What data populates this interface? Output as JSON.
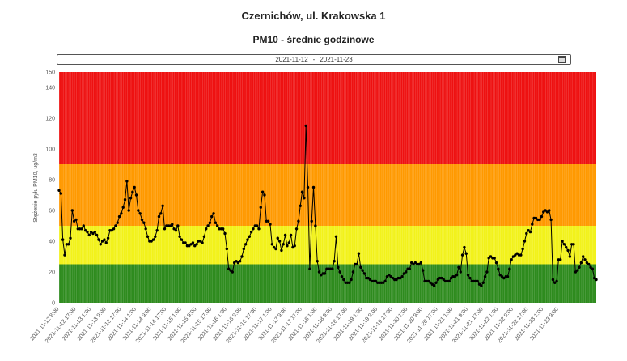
{
  "header": {
    "title": "Czernichów, ul. Krakowska 1",
    "subtitle": "PM10 - średnie godzinowe"
  },
  "date_range": {
    "from": "2021-11-12",
    "separator": "-",
    "to": "2021-11-23",
    "icon": "calendar-icon"
  },
  "chart_data": {
    "type": "line",
    "title": "PM10 - średnie godzinowe",
    "ylabel": "Stężenie pyłu PM10, ug/m3",
    "xlabel": "",
    "ylim": [
      0,
      150
    ],
    "yticks": [
      0,
      20,
      40,
      60,
      80,
      100,
      120,
      140,
      150
    ],
    "grid": false,
    "bands": [
      {
        "from": 0,
        "to": 25,
        "color": "#2e8b1e"
      },
      {
        "from": 25,
        "to": 50,
        "color": "#f2f21a"
      },
      {
        "from": 50,
        "to": 90,
        "color": "#ff9900"
      },
      {
        "from": 90,
        "to": 150,
        "color": "#ee1111"
      }
    ],
    "line_color": "#000000",
    "x_start": "2021-11-12 8:00",
    "x_step_hours": 1,
    "xtick_labels": [
      "2021-11-12 8:00",
      "2021-11-12 17:00",
      "2021-11-13 1:00",
      "2021-11-13 9:00",
      "2021-11-13 17:00",
      "2021-11-14 1:00",
      "2021-11-14 9:00",
      "2021-11-14 17:00",
      "2021-11-15 1:00",
      "2021-11-15 9:00",
      "2021-11-15 17:00",
      "2021-11-16 1:00",
      "2021-11-16 9:00",
      "2021-11-16 17:00",
      "2021-11-17 1:00",
      "2021-11-17 9:00",
      "2021-11-17 17:00",
      "2021-11-18 1:00",
      "2021-11-18 9:00",
      "2021-11-18 17:00",
      "2021-11-19 1:00",
      "2021-11-19 9:00",
      "2021-11-19 17:00",
      "2021-11-20 1:00",
      "2021-11-20 9:00",
      "2021-11-20 17:00",
      "2021-11-21 1:00",
      "2021-11-21 9:00",
      "2021-11-21 17:00",
      "2021-11-22 1:00",
      "2021-11-22 9:00",
      "2021-11-22 17:00",
      "2021-11-23 1:00",
      "2021-11-23 9:00"
    ],
    "series": [
      {
        "values": [
          73,
          71,
          41,
          31,
          38,
          38,
          42,
          60,
          53,
          54,
          48,
          48,
          48,
          50,
          47,
          46,
          44,
          46,
          45,
          46,
          44,
          41,
          38,
          40,
          41,
          39,
          42,
          47,
          47,
          48,
          50,
          52,
          56,
          58,
          62,
          67,
          79,
          60,
          68,
          72,
          75,
          70,
          60,
          58,
          54,
          52,
          48,
          43,
          40,
          40,
          41,
          43,
          47,
          56,
          58,
          63,
          48,
          50,
          50,
          50,
          51,
          48,
          47,
          50,
          43,
          41,
          39,
          39,
          37,
          37,
          38,
          39,
          37,
          38,
          40,
          40,
          39,
          43,
          48,
          50,
          52,
          56,
          58,
          52,
          50,
          48,
          48,
          48,
          45,
          35,
          22,
          21,
          20,
          26,
          27,
          26,
          27,
          30,
          35,
          38,
          41,
          43,
          46,
          48,
          50,
          50,
          48,
          62,
          72,
          70,
          53,
          53,
          51,
          38,
          36,
          35,
          42,
          40,
          34,
          38,
          44,
          37,
          39,
          44,
          36,
          37,
          48,
          53,
          63,
          72,
          68,
          115,
          75,
          22,
          53,
          75,
          50,
          27,
          20,
          18,
          19,
          19,
          22,
          22,
          22,
          22,
          27,
          43,
          23,
          20,
          17,
          15,
          13,
          13,
          13,
          15,
          20,
          25,
          25,
          32,
          23,
          21,
          19,
          16,
          16,
          15,
          14,
          14,
          14,
          13,
          13,
          13,
          13,
          14,
          17,
          18,
          17,
          16,
          15,
          15,
          16,
          16,
          17,
          19,
          20,
          22,
          22,
          26,
          25,
          26,
          25,
          25,
          26,
          21,
          14,
          14,
          14,
          13,
          12,
          11,
          13,
          15,
          16,
          16,
          15,
          14,
          14,
          14,
          16,
          17,
          17,
          18,
          23,
          20,
          31,
          36,
          32,
          18,
          16,
          14,
          14,
          14,
          14,
          12,
          11,
          13,
          17,
          20,
          29,
          30,
          29,
          29,
          26,
          22,
          18,
          17,
          16,
          17,
          17,
          22,
          28,
          30,
          31,
          32,
          31,
          31,
          35,
          40,
          45,
          47,
          46,
          51,
          55,
          55,
          54,
          54,
          56,
          59,
          60,
          59,
          60,
          54,
          15,
          13,
          14,
          28,
          28,
          40,
          38,
          36,
          34,
          30,
          38,
          38,
          20,
          21,
          23,
          26,
          30,
          28,
          26,
          25,
          23,
          22,
          16,
          15
        ]
      }
    ]
  }
}
